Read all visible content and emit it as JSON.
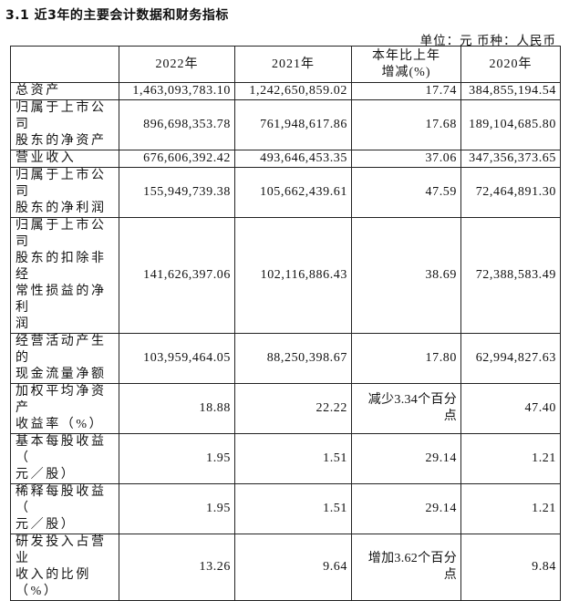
{
  "title": "3.1 近3年的主要会计数据和财务指标",
  "unit_line": "单位：元  币种：人民币",
  "table": {
    "headers": [
      "",
      "2022年",
      "2021年",
      "本年比上年\n增减(%)",
      "2020年"
    ],
    "rows": [
      {
        "label": "总资产",
        "y2022": "1,463,093,783.10",
        "y2021": "1,242,650,859.02",
        "change": "17.74",
        "y2020": "384,855,194.54"
      },
      {
        "label": "归属于上市公司\n股东的净资产",
        "y2022": "896,698,353.78",
        "y2021": "761,948,617.86",
        "change": "17.68",
        "y2020": "189,104,685.80"
      },
      {
        "label": "营业收入",
        "y2022": "676,606,392.42",
        "y2021": "493,646,453.35",
        "change": "37.06",
        "y2020": "347,356,373.65"
      },
      {
        "label": "归属于上市公司\n股东的净利润",
        "y2022": "155,949,739.38",
        "y2021": "105,662,439.61",
        "change": "47.59",
        "y2020": "72,464,891.30"
      },
      {
        "label": "归属于上市公司\n股东的扣除非经\n常性损益的净利\n润",
        "y2022": "141,626,397.06",
        "y2021": "102,116,886.43",
        "change": "38.69",
        "y2020": "72,388,583.49"
      },
      {
        "label": "经营活动产生的\n现金流量净额",
        "y2022": "103,959,464.05",
        "y2021": "88,250,398.67",
        "change": "17.80",
        "y2020": "62,994,827.63"
      },
      {
        "label": "加权平均净资产\n收益率（%）",
        "y2022": "18.88",
        "y2021": "22.22",
        "change": "减少3.34个百分\n点",
        "y2020": "47.40"
      },
      {
        "label": "基本每股收益（\n元／股）",
        "y2022": "1.95",
        "y2021": "1.51",
        "change": "29.14",
        "y2020": "1.21"
      },
      {
        "label": "稀释每股收益（\n元／股）",
        "y2022": "1.95",
        "y2021": "1.51",
        "change": "29.14",
        "y2020": "1.21"
      },
      {
        "label": "研发投入占营业\n收入的比例（%）",
        "y2022": "13.26",
        "y2021": "9.64",
        "change": "增加3.62个百分\n点",
        "y2020": "9.84"
      }
    ]
  }
}
